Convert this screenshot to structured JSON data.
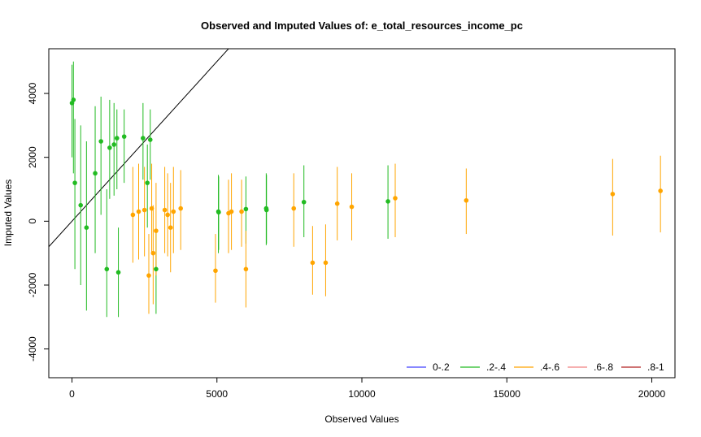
{
  "chart_data": {
    "type": "scatter",
    "title": "Observed and Imputed Values of: e_total_resources_income_pc",
    "xlabel": "Observed Values",
    "ylabel": "Imputed Values",
    "xlim": [
      -800,
      20800
    ],
    "ylim": [
      -4900,
      5400
    ],
    "x_ticks": [
      0,
      5000,
      10000,
      15000,
      20000
    ],
    "x_tick_labels": [
      "0",
      "5000",
      "10000",
      "15000",
      "20000"
    ],
    "y_ticks": [
      -4000,
      -2000,
      0,
      2000,
      4000
    ],
    "y_tick_labels": [
      "-4000",
      "-2000",
      "0",
      "2000",
      "4000"
    ],
    "reference_line": {
      "slope": 1,
      "intercept": 0,
      "color": "#000000"
    },
    "legend": {
      "placement": "bottom-right",
      "entries": [
        {
          "label": "0-.2",
          "color": "#4040ff"
        },
        {
          "label": ".2-.4",
          "color": "#22bb22"
        },
        {
          "label": ".4-.6",
          "color": "#ffa500"
        },
        {
          "label": ".6-.8",
          "color": "#f08080"
        },
        {
          "label": ".8-1",
          "color": "#b22222"
        }
      ]
    },
    "series": [
      {
        "color": "#22bb22",
        "points": [
          {
            "x": 0,
            "y": 3700,
            "lo": 2000,
            "hi": 4900
          },
          {
            "x": 50,
            "y": 3800,
            "lo": 1500,
            "hi": 5000
          },
          {
            "x": 100,
            "y": 1200,
            "lo": -1500,
            "hi": 3200
          },
          {
            "x": 300,
            "y": 500,
            "lo": -2000,
            "hi": 3000
          },
          {
            "x": 500,
            "y": -200,
            "lo": -2800,
            "hi": 2500
          },
          {
            "x": 800,
            "y": 1500,
            "lo": -1000,
            "hi": 3600
          },
          {
            "x": 1000,
            "y": 2500,
            "lo": 200,
            "hi": 3900
          },
          {
            "x": 1200,
            "y": -1500,
            "lo": -3000,
            "hi": 1000
          },
          {
            "x": 1300,
            "y": 2300,
            "lo": 700,
            "hi": 3800
          },
          {
            "x": 1450,
            "y": 2400,
            "lo": 800,
            "hi": 3700
          },
          {
            "x": 1550,
            "y": 2600,
            "lo": 1000,
            "hi": 3500
          },
          {
            "x": 1600,
            "y": -1600,
            "lo": -3000,
            "hi": -200
          },
          {
            "x": 1800,
            "y": 2650,
            "lo": 1200,
            "hi": 3500
          },
          {
            "x": 2450,
            "y": 2600,
            "lo": 1300,
            "hi": 3700
          },
          {
            "x": 2600,
            "y": 1200,
            "lo": -200,
            "hi": 2400
          },
          {
            "x": 2700,
            "y": 2550,
            "lo": 1300,
            "hi": 3500
          },
          {
            "x": 2900,
            "y": -1500,
            "lo": -2900,
            "hi": -300
          },
          {
            "x": 5050,
            "y": 300,
            "lo": -1000,
            "hi": 1450
          },
          {
            "x": 5060,
            "y": 280,
            "lo": -900,
            "hi": 1400
          },
          {
            "x": 6000,
            "y": 380,
            "lo": -700,
            "hi": 1400
          },
          {
            "x": 6700,
            "y": 400,
            "lo": -750,
            "hi": 1500
          },
          {
            "x": 6710,
            "y": 350,
            "lo": -700,
            "hi": 1450
          },
          {
            "x": 8000,
            "y": 600,
            "lo": -500,
            "hi": 1750
          },
          {
            "x": 10900,
            "y": 620,
            "lo": -550,
            "hi": 1750
          }
        ]
      },
      {
        "color": "#ffa500",
        "points": [
          {
            "x": 2100,
            "y": 200,
            "lo": -1300,
            "hi": 1700
          },
          {
            "x": 2300,
            "y": 300,
            "lo": -1200,
            "hi": 1800
          },
          {
            "x": 2500,
            "y": 350,
            "lo": -1100,
            "hi": 1700
          },
          {
            "x": 2650,
            "y": -1700,
            "lo": -2900,
            "hi": -400
          },
          {
            "x": 2750,
            "y": 400,
            "lo": -1000,
            "hi": 1800
          },
          {
            "x": 2800,
            "y": -1000,
            "lo": -2600,
            "hi": 500
          },
          {
            "x": 2900,
            "y": -300,
            "lo": -1700,
            "hi": 1200
          },
          {
            "x": 3200,
            "y": 350,
            "lo": -1000,
            "hi": 1700
          },
          {
            "x": 3300,
            "y": 200,
            "lo": -1100,
            "hi": 1500
          },
          {
            "x": 3400,
            "y": -200,
            "lo": -1600,
            "hi": 1200
          },
          {
            "x": 3500,
            "y": 300,
            "lo": -1000,
            "hi": 1700
          },
          {
            "x": 3750,
            "y": 400,
            "lo": -900,
            "hi": 1600
          },
          {
            "x": 4950,
            "y": -1550,
            "lo": -2550,
            "hi": -400
          },
          {
            "x": 5400,
            "y": 250,
            "lo": -1000,
            "hi": 1300
          },
          {
            "x": 5500,
            "y": 300,
            "lo": -900,
            "hi": 1500
          },
          {
            "x": 5850,
            "y": 300,
            "lo": -800,
            "hi": 1300
          },
          {
            "x": 6000,
            "y": -1500,
            "lo": -2700,
            "hi": -300
          },
          {
            "x": 7650,
            "y": 400,
            "lo": -800,
            "hi": 1500
          },
          {
            "x": 8300,
            "y": -1300,
            "lo": -2300,
            "hi": -150
          },
          {
            "x": 8750,
            "y": -1300,
            "lo": -2350,
            "hi": -100
          },
          {
            "x": 9150,
            "y": 550,
            "lo": -600,
            "hi": 1700
          },
          {
            "x": 9650,
            "y": 450,
            "lo": -600,
            "hi": 1500
          },
          {
            "x": 11150,
            "y": 720,
            "lo": -500,
            "hi": 1800
          },
          {
            "x": 13600,
            "y": 650,
            "lo": -400,
            "hi": 1650
          },
          {
            "x": 18650,
            "y": 850,
            "lo": -450,
            "hi": 1950
          },
          {
            "x": 20300,
            "y": 950,
            "lo": -350,
            "hi": 2050
          }
        ]
      }
    ]
  }
}
